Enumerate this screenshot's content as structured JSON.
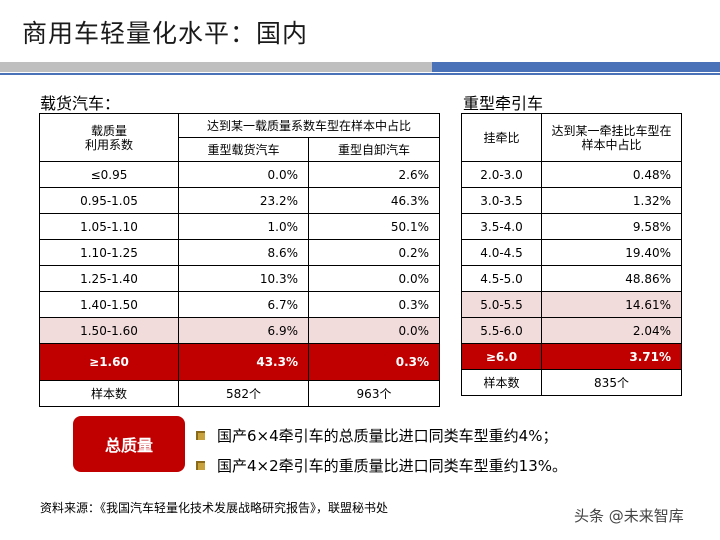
{
  "title": "商用车轻量化水平：国内",
  "left": {
    "label": "载货汽车：",
    "header_col1": "载质量\n利用系数",
    "header_group": "达到某一载质量系数车型在样本中占比",
    "header_sub1": "重型载货汽车",
    "header_sub2": "重型自卸汽车",
    "rows": [
      {
        "range": "≤0.95",
        "a": "0.0%",
        "b": "2.6%"
      },
      {
        "range": "0.95-1.05",
        "a": "23.2%",
        "b": "46.3%"
      },
      {
        "range": "1.05-1.10",
        "a": "1.0%",
        "b": "50.1%"
      },
      {
        "range": "1.10-1.25",
        "a": "8.6%",
        "b": "0.2%"
      },
      {
        "range": "1.25-1.40",
        "a": "10.3%",
        "b": "0.0%"
      },
      {
        "range": "1.40-1.50",
        "a": "6.7%",
        "b": "0.3%"
      },
      {
        "range": "1.50-1.60",
        "a": "6.9%",
        "b": "0.0%"
      },
      {
        "range": "≥1.60",
        "a": "43.3%",
        "b": "0.3%"
      }
    ],
    "sample_label": "样本数",
    "sample_a": "582个",
    "sample_b": "963个"
  },
  "right": {
    "label": "重型牵引车",
    "header_col1": "挂牵比",
    "header_col2": "达到某一牵挂比车型在样本中占比",
    "rows": [
      {
        "range": "2.0-3.0",
        "v": "0.48%"
      },
      {
        "range": "3.0-3.5",
        "v": "1.32%"
      },
      {
        "range": "3.5-4.0",
        "v": "9.58%"
      },
      {
        "range": "4.0-4.5",
        "v": "19.40%"
      },
      {
        "range": "4.5-5.0",
        "v": "48.86%"
      },
      {
        "range": "5.0-5.5",
        "v": "14.61%"
      },
      {
        "range": "5.5-6.0",
        "v": "2.04%"
      },
      {
        "range": "≥6.0",
        "v": "3.71%"
      }
    ],
    "sample_label": "样本数",
    "sample_v": "835个"
  },
  "badge": "总质量",
  "bullets": [
    "国产6×4牵引车的总质量比进口同类车型重约4%；",
    "国产4×2牵引车的重质量比进口同类车型重约13%。"
  ],
  "source": "资料来源：《我国汽车轻量化技术发展战略研究报告》，联盟秘书处",
  "watermark": "头条 @未来智库",
  "colors": {
    "accent_red": "#c00000",
    "highlight_pink": "#f2dcdb",
    "rule_blue": "#4a72b8",
    "rule_gray": "#bfbfbf"
  }
}
